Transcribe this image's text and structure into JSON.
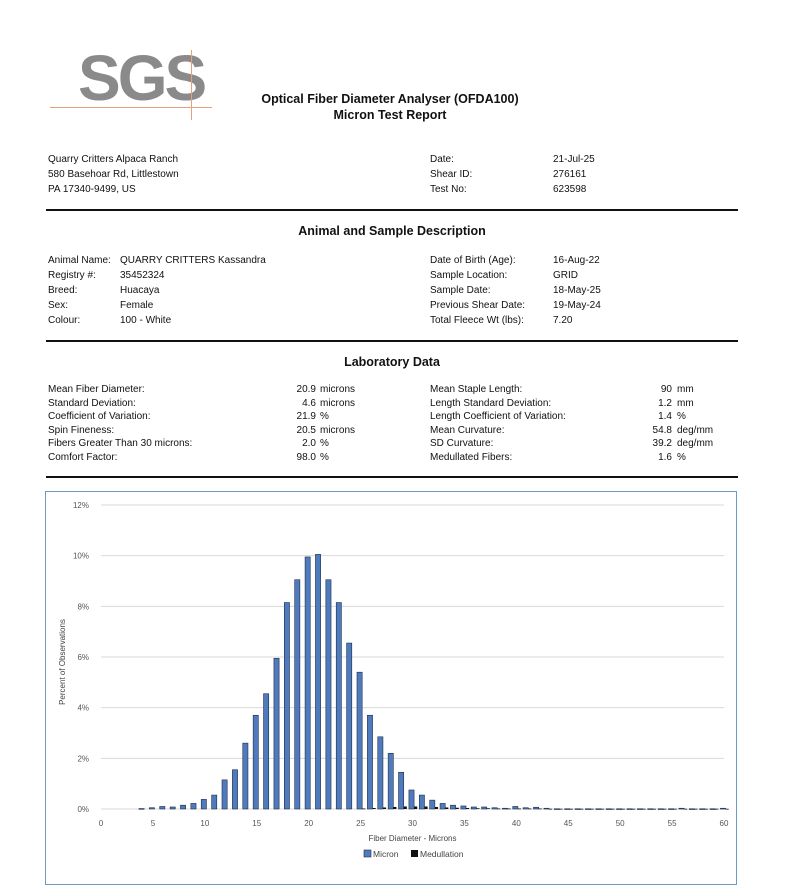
{
  "logo": {
    "text": "SGS"
  },
  "header": {
    "title_line1": "Optical Fiber Diameter Analyser (OFDA100)",
    "title_line2": "Micron Test Report"
  },
  "client": {
    "name": "Quarry Critters Alpaca Ranch",
    "address1": "580 Basehoar Rd, Littlestown",
    "address2": "PA 17340-9499, US"
  },
  "report_info": [
    {
      "label": "Date:",
      "value": "21-Jul-25"
    },
    {
      "label": "Shear ID:",
      "value": "276161"
    },
    {
      "label": "Test No:",
      "value": "623598"
    }
  ],
  "animal_section": {
    "title": "Animal and Sample Description",
    "left": [
      {
        "label": "Animal Name:",
        "value": "QUARRY CRITTERS Kassandra"
      },
      {
        "label": "Registry #:",
        "value": "35452324"
      },
      {
        "label": "Breed:",
        "value": "Huacaya"
      },
      {
        "label": "Sex:",
        "value": "Female"
      },
      {
        "label": "Colour:",
        "value": "100 - White"
      }
    ],
    "right": [
      {
        "label": "Date of Birth (Age):",
        "value": "16-Aug-22"
      },
      {
        "label": "Sample Location:",
        "value": "GRID"
      },
      {
        "label": "Sample Date:",
        "value": "18-May-25"
      },
      {
        "label": "Previous Shear Date:",
        "value": "19-May-24"
      },
      {
        "label": "Total Fleece Wt (lbs):",
        "value": "7.20"
      }
    ]
  },
  "lab_section": {
    "title": "Laboratory Data",
    "left": [
      {
        "label": "Mean Fiber Diameter:",
        "value": "20.9",
        "unit": "microns"
      },
      {
        "label": "Standard Deviation:",
        "value": "4.6",
        "unit": "microns"
      },
      {
        "label": "Coefficient of Variation:",
        "value": "21.9",
        "unit": "%"
      },
      {
        "label": "Spin Fineness:",
        "value": "20.5",
        "unit": "microns"
      },
      {
        "label": "Fibers Greater Than 30 microns:",
        "value": "2.0",
        "unit": "%"
      },
      {
        "label": "Comfort Factor:",
        "value": "98.0",
        "unit": "%"
      }
    ],
    "right": [
      {
        "label": "Mean Staple Length:",
        "value": "90",
        "unit": "mm"
      },
      {
        "label": "Length Standard Deviation:",
        "value": "1.2",
        "unit": "mm"
      },
      {
        "label": "Length Coefficient of Variation:",
        "value": "1.4",
        "unit": "%"
      },
      {
        "label": "Mean Curvature:",
        "value": "54.8",
        "unit": "deg/mm"
      },
      {
        "label": "SD Curvature:",
        "value": "39.2",
        "unit": "deg/mm"
      },
      {
        "label": "Medullated Fibers:",
        "value": "1.6",
        "unit": "%"
      }
    ]
  },
  "chart_data": {
    "type": "bar",
    "xlabel": "Fiber Diameter - Microns",
    "ylabel": "Percent of Observations",
    "xlim": [
      0,
      60
    ],
    "ylim": [
      0,
      12
    ],
    "x_ticks": [
      0,
      5,
      10,
      15,
      20,
      25,
      30,
      35,
      40,
      45,
      50,
      55,
      60
    ],
    "y_ticks": [
      0,
      2,
      4,
      6,
      8,
      10,
      12
    ],
    "y_tick_labels": [
      "0%",
      "2%",
      "4%",
      "6%",
      "8%",
      "10%",
      "12%"
    ],
    "grid": true,
    "legend": "bottom",
    "colors": {
      "micron": "#4f7bbd",
      "medullation": "#111111",
      "grid": "#d9d9d9",
      "border": "#6e9ac5"
    },
    "x": [
      4,
      5,
      6,
      7,
      8,
      9,
      10,
      11,
      12,
      13,
      14,
      15,
      16,
      17,
      18,
      19,
      20,
      21,
      22,
      23,
      24,
      25,
      26,
      27,
      28,
      29,
      30,
      31,
      32,
      33,
      34,
      35,
      36,
      37,
      38,
      39,
      40,
      41,
      42,
      43,
      44,
      45,
      46,
      47,
      48,
      49,
      50,
      51,
      52,
      53,
      54,
      55,
      56,
      57,
      58,
      59,
      60
    ],
    "series": [
      {
        "name": "Micron",
        "values": [
          0.02,
          0.05,
          0.1,
          0.08,
          0.15,
          0.22,
          0.38,
          0.55,
          1.15,
          1.55,
          2.6,
          3.7,
          4.55,
          5.95,
          8.15,
          9.05,
          9.95,
          10.05,
          9.05,
          8.15,
          6.55,
          5.4,
          3.7,
          2.85,
          2.2,
          1.45,
          0.75,
          0.55,
          0.35,
          0.22,
          0.15,
          0.12,
          0.08,
          0.08,
          0.05,
          0.03,
          0.1,
          0.05,
          0.07,
          0.03,
          0.01,
          0.01,
          0.01,
          0.01,
          0.01,
          0.01,
          0.01,
          0.01,
          0.01,
          0.01,
          0.01,
          0.01,
          0.03,
          0.01,
          0.01,
          0.01,
          0.03
        ]
      },
      {
        "name": "Medullation",
        "values": [
          0,
          0,
          0,
          0,
          0,
          0,
          0,
          0,
          0,
          0,
          0,
          0,
          0,
          0,
          0,
          0,
          0,
          0,
          0,
          0,
          0,
          0.02,
          0.04,
          0.06,
          0.08,
          0.1,
          0.1,
          0.1,
          0.08,
          0.06,
          0.05,
          0.04,
          0.03,
          0.03,
          0.02,
          0.02,
          0.02,
          0.02,
          0.02,
          0.01,
          0.01,
          0.01,
          0.01,
          0.01,
          0.01,
          0.01,
          0.01,
          0.01,
          0.01,
          0.01,
          0.01,
          0.01,
          0.01,
          0.01,
          0.01,
          0.01,
          0.01
        ]
      }
    ]
  }
}
